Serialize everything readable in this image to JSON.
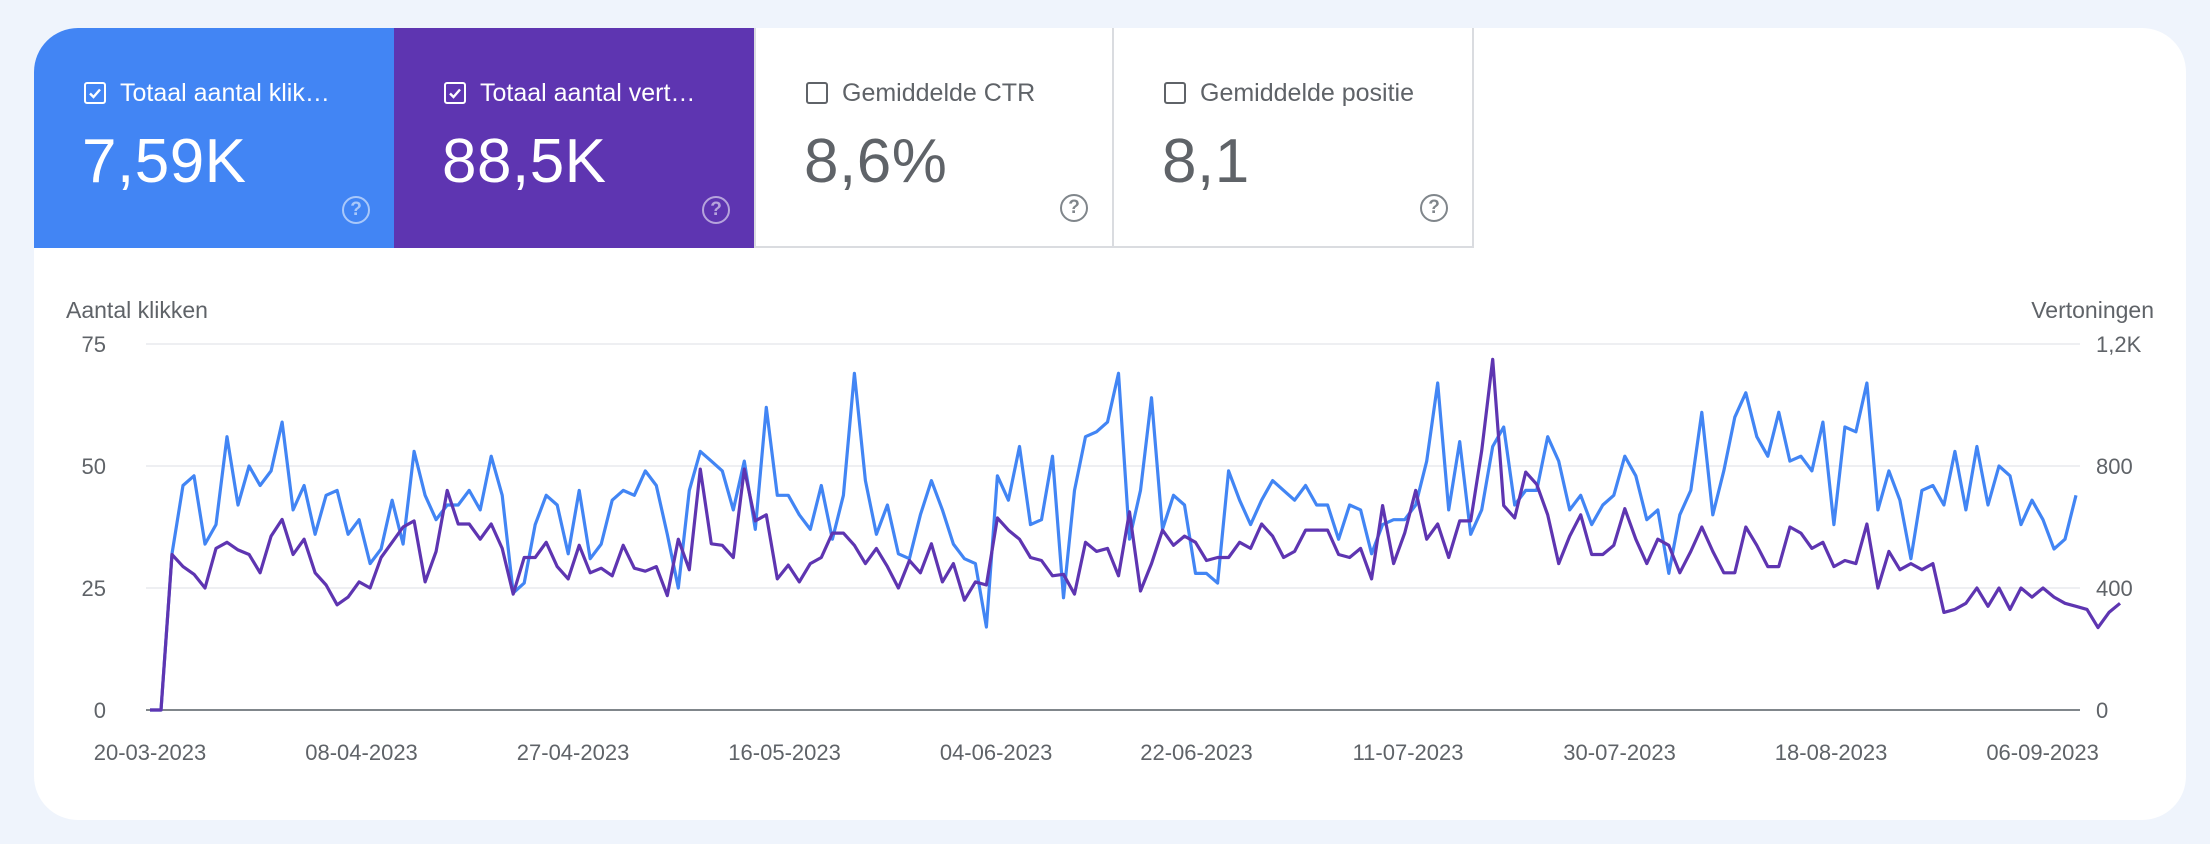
{
  "colors": {
    "clicks": "#4285f4",
    "impressions": "#5e35b1",
    "page_bg": "#eff4fc",
    "grid": "#e8eaed",
    "text": "#5f6368"
  },
  "metrics": [
    {
      "label": "Totaal aantal klik…",
      "value": "7,59K",
      "checked": true,
      "color": "#4285f4",
      "help_icon": "help-circle-icon"
    },
    {
      "label": "Totaal aantal vert…",
      "value": "88,5K",
      "checked": true,
      "color": "#5e35b1",
      "help_icon": "help-circle-icon"
    },
    {
      "label": "Gemiddelde CTR",
      "value": "8,6%",
      "checked": false,
      "color": "#ffffff",
      "help_icon": "help-circle-icon"
    },
    {
      "label": "Gemiddelde positie",
      "value": "8,1",
      "checked": false,
      "color": "#ffffff",
      "help_icon": "help-circle-icon"
    }
  ],
  "help_symbol": "?",
  "chart_data": {
    "type": "line",
    "grid": true,
    "left_axis_title": "Aantal klikken",
    "right_axis_title": "Vertoningen",
    "left_ticks": [
      "0",
      "25",
      "50",
      "75"
    ],
    "left_tick_values": [
      0,
      25,
      50,
      75
    ],
    "right_ticks": [
      "0",
      "400",
      "800",
      "1,2K"
    ],
    "right_tick_values": [
      0,
      400,
      800,
      1200
    ],
    "ylim_left": [
      0,
      75
    ],
    "ylim_right": [
      0,
      1200
    ],
    "x_start": "20-03-2023",
    "x_end": "09-09-2023",
    "x_ticks": [
      "20-03-2023",
      "08-04-2023",
      "27-04-2023",
      "16-05-2023",
      "04-06-2023",
      "22-06-2023",
      "11-07-2023",
      "30-07-2023",
      "18-08-2023",
      "06-09-2023"
    ],
    "series": [
      {
        "name": "Totaal aantal klikken",
        "axis": "left",
        "color": "#4285f4",
        "values": [
          0,
          0,
          32,
          46,
          48,
          34,
          38,
          56,
          42,
          50,
          46,
          49,
          59,
          41,
          46,
          36,
          44,
          45,
          36,
          39,
          30,
          33,
          43,
          34,
          53,
          44,
          39,
          42,
          42,
          45,
          41,
          52,
          44,
          24,
          26,
          38,
          44,
          42,
          32,
          45,
          31,
          34,
          43,
          45,
          44,
          49,
          46,
          36,
          25,
          45,
          53,
          51,
          49,
          41,
          51,
          37,
          62,
          44,
          44,
          40,
          37,
          46,
          35,
          44,
          69,
          47,
          36,
          42,
          32,
          31,
          40,
          47,
          41,
          34,
          31,
          30,
          17,
          48,
          43,
          54,
          38,
          39,
          52,
          23,
          45,
          56,
          57,
          59,
          69,
          35,
          45,
          64,
          37,
          44,
          42,
          28,
          28,
          26,
          49,
          43,
          38,
          43,
          47,
          45,
          43,
          46,
          42,
          42,
          35,
          42,
          41,
          32,
          38,
          39,
          39,
          42,
          51,
          67,
          41,
          55,
          36,
          41,
          54,
          58,
          42,
          45,
          45,
          56,
          51,
          41,
          44,
          38,
          42,
          44,
          52,
          48,
          39,
          41,
          28,
          40,
          45,
          61,
          40,
          49,
          60,
          65,
          56,
          52,
          61,
          51,
          52,
          49,
          59,
          38,
          58,
          57,
          67,
          41,
          49,
          43,
          31,
          45,
          46,
          42,
          53,
          41,
          54,
          42,
          50,
          48,
          38,
          43,
          39,
          33,
          35,
          44
        ]
      },
      {
        "name": "Totaal aantal vertoningen",
        "axis": "right",
        "color": "#5e35b1",
        "values": [
          0,
          0,
          510,
          470,
          445,
          400,
          530,
          550,
          525,
          510,
          450,
          570,
          625,
          510,
          560,
          450,
          410,
          345,
          370,
          420,
          400,
          500,
          550,
          600,
          620,
          420,
          520,
          720,
          610,
          610,
          560,
          610,
          530,
          380,
          500,
          500,
          550,
          470,
          430,
          540,
          450,
          465,
          440,
          540,
          465,
          455,
          470,
          375,
          560,
          460,
          790,
          545,
          540,
          500,
          790,
          620,
          640,
          430,
          475,
          420,
          480,
          500,
          580,
          580,
          540,
          480,
          530,
          470,
          400,
          490,
          450,
          545,
          420,
          480,
          360,
          420,
          410,
          630,
          590,
          560,
          500,
          490,
          440,
          445,
          380,
          550,
          520,
          530,
          440,
          650,
          390,
          480,
          590,
          540,
          570,
          550,
          490,
          500,
          500,
          550,
          530,
          610,
          570,
          500,
          520,
          590,
          590,
          590,
          510,
          500,
          530,
          430,
          670,
          480,
          580,
          720,
          560,
          610,
          500,
          620,
          620,
          850,
          1150,
          670,
          630,
          780,
          740,
          640,
          480,
          570,
          640,
          510,
          510,
          540,
          660,
          560,
          480,
          560,
          540,
          450,
          520,
          600,
          520,
          450,
          450,
          600,
          540,
          470,
          470,
          600,
          580,
          530,
          550,
          470,
          490,
          480,
          610,
          400,
          520,
          460,
          480,
          460,
          480,
          320,
          330,
          350,
          400,
          340,
          400,
          330,
          400,
          370,
          400,
          370,
          350,
          340,
          330,
          270,
          320,
          350
        ]
      }
    ]
  }
}
